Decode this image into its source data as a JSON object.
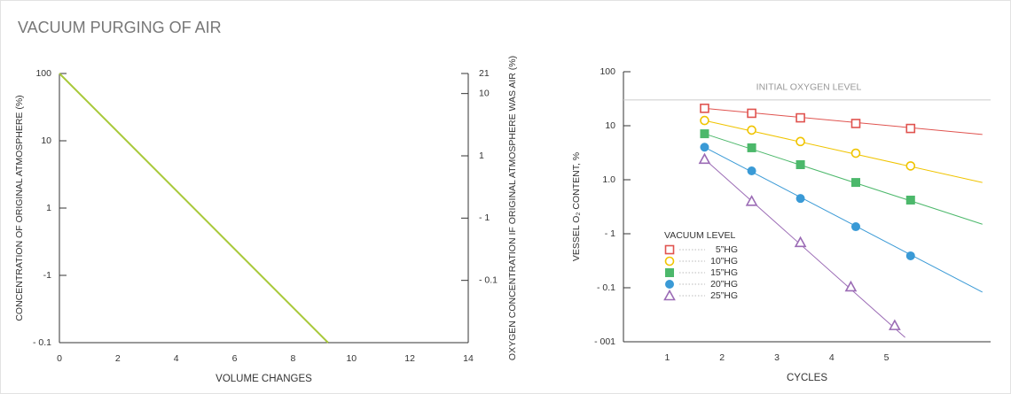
{
  "title": "VACUUM PURGING OF AIR",
  "chart_data": [
    {
      "type": "line",
      "xlabel": "VOLUME CHANGES",
      "ylabel": "CONCENTRATION OF ORIGINAL ATMOSPHERE (%)",
      "y2label": "OXYGEN CONCENTRATION IF ORIGINAL ATMOSPHERE WAS AIR (%)",
      "xlim": [
        0,
        14
      ],
      "xticks": [
        0,
        2,
        4,
        6,
        8,
        10,
        12,
        14
      ],
      "ylim": [
        0.01,
        100
      ],
      "yscale": "log",
      "yticks": [
        100,
        10,
        1,
        {
          "value": 0.1,
          "label": "-1"
        },
        {
          "value": 0.01,
          "label": "- 0.1"
        }
      ],
      "y2lim": [
        0.001,
        21
      ],
      "y2scale": "log",
      "y2ticks": [
        21,
        10,
        1,
        {
          "value": 0.1,
          "label": "- 1"
        },
        {
          "value": 0.01,
          "label": "- 0.1"
        }
      ],
      "series": [
        {
          "color": "#a8c93a",
          "x": [
            0,
            9.2
          ],
          "values": [
            100,
            0.01
          ]
        }
      ]
    },
    {
      "type": "scatter",
      "xlabel": "CYCLES",
      "ylabel": "VESSEL O₂  CONTENT, %",
      "xlim": [
        0.2,
        6.9
      ],
      "xticks": [
        1,
        2,
        3,
        4,
        5
      ],
      "ylim": [
        0.001,
        100
      ],
      "yscale": "log",
      "yticks": [
        100,
        10,
        {
          "value": 1,
          "label": "1.0"
        },
        {
          "value": 0.1,
          "label": "- 1"
        },
        {
          "value": 0.01,
          "label": "- 0.1"
        },
        {
          "value": 0.001,
          "label": "- 001"
        }
      ],
      "reference_line": {
        "label": "INITIAL OXYGEN LEVEL",
        "value": 30
      },
      "legend_title": "VACUUM LEVEL",
      "series": [
        {
          "name": "5”HG",
          "color": "#e0534f",
          "marker": "square-open",
          "x": [
            1.68,
            2.54,
            3.43,
            4.44,
            5.44
          ],
          "values": [
            21,
            17,
            14,
            11,
            8.9
          ],
          "fit_x": [
            1.68,
            6.75
          ],
          "fit_values": [
            21,
            6.9
          ]
        },
        {
          "name": "10”HG",
          "color": "#f0c400",
          "marker": "circle-open",
          "x": [
            1.68,
            2.54,
            3.43,
            4.44,
            5.44
          ],
          "values": [
            12.5,
            8.3,
            5.1,
            3.1,
            1.8
          ],
          "fit_x": [
            1.68,
            6.75
          ],
          "fit_values": [
            12.5,
            0.89
          ]
        },
        {
          "name": "15”HG",
          "color": "#4cb86b",
          "marker": "square",
          "x": [
            1.68,
            2.54,
            3.43,
            4.44,
            5.44
          ],
          "values": [
            7.1,
            3.9,
            1.9,
            0.89,
            0.42
          ],
          "fit_x": [
            1.68,
            6.75
          ],
          "fit_values": [
            7.1,
            0.15
          ]
        },
        {
          "name": "20”HG",
          "color": "#3a9ad6",
          "marker": "circle",
          "x": [
            1.68,
            2.54,
            3.43,
            4.44,
            5.44
          ],
          "values": [
            4,
            1.46,
            0.45,
            0.135,
            0.039
          ],
          "fit_x": [
            1.68,
            6.75
          ],
          "fit_values": [
            4,
            0.0083
          ]
        },
        {
          "name": "25”HG",
          "color": "#9b6bb5",
          "marker": "triangle-open",
          "x": [
            1.68,
            2.54,
            3.43,
            4.35,
            5.15
          ],
          "values": [
            2.4,
            0.4,
            0.069,
            0.0104,
            0.002
          ],
          "fit_x": [
            1.68,
            5.34
          ],
          "fit_values": [
            2.4,
            0.0012
          ]
        }
      ]
    }
  ]
}
